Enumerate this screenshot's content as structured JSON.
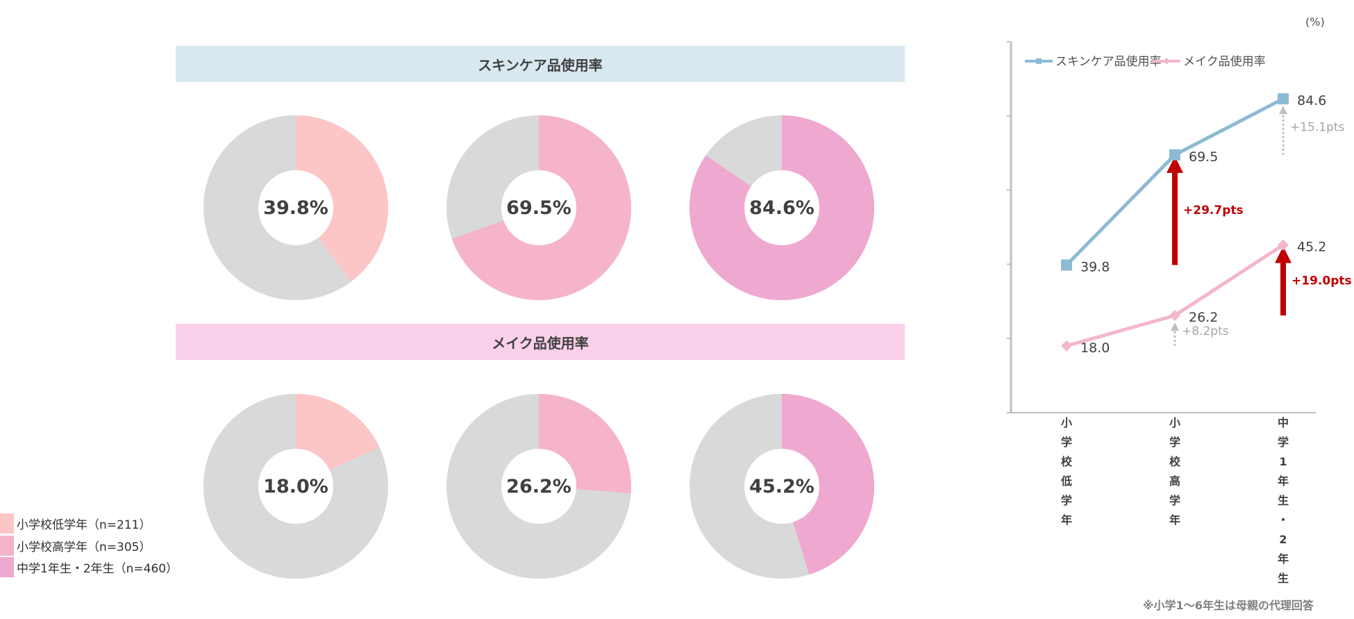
{
  "unit_label": "(%)",
  "footnote": "※小学1〜6年生は母親の代理回答",
  "colors": {
    "skincare_banner": "#d9e8f0",
    "makeup_banner": "#fbd0ea",
    "grey_slice": "#d9d9d9",
    "group1": "#fcc6c6",
    "group2": "#f5b4c9",
    "group3": "#efa8d0",
    "skincare_line": "#8dbad4",
    "makeup_line": "#f3b6cb",
    "arrow_red": "#c00000",
    "arrow_grey": "#bfbfbf"
  },
  "legend": [
    {
      "label": "小学校低学年（n=211）",
      "color": "#fcc6c6"
    },
    {
      "label": "小学校高学年（n=305）",
      "color": "#f5b4c9"
    },
    {
      "label": "中学1年生・2年生（n=460）",
      "color": "#efa8d0"
    }
  ],
  "donuts": {
    "skincare_title": "スキンケア品使用率",
    "makeup_title": "メイク品使用率",
    "skincare": [
      {
        "label": "39.8%",
        "value": 39.8
      },
      {
        "label": "69.5%",
        "value": 69.5
      },
      {
        "label": "84.6%",
        "value": 84.6
      }
    ],
    "makeup": [
      {
        "label": "18.0%",
        "value": 18.0
      },
      {
        "label": "26.2%",
        "value": 26.2
      },
      {
        "label": "45.2%",
        "value": 45.2
      }
    ]
  },
  "chart_data": [
    {
      "type": "pie",
      "title": "スキンケア品使用率",
      "categories": [
        "小学校低学年（n=211）",
        "小学校高学年（n=305）",
        "中学1年生・2年生（n=460）"
      ],
      "values": [
        39.8,
        69.5,
        84.6
      ]
    },
    {
      "type": "pie",
      "title": "メイク品使用率",
      "categories": [
        "小学校低学年（n=211）",
        "小学校高学年（n=305）",
        "中学1年生・2年生（n=460）"
      ],
      "values": [
        18.0,
        26.2,
        45.2
      ]
    },
    {
      "type": "line",
      "categories": [
        "小学校低学年",
        "小学校高学年",
        "中学1年生・2年生"
      ],
      "series": [
        {
          "name": "スキンケア品使用率",
          "values": [
            39.8,
            69.5,
            84.6
          ],
          "labels": [
            "39.8",
            "69.5",
            "84.6"
          ]
        },
        {
          "name": "メイク品使用率",
          "values": [
            18.0,
            26.2,
            45.2
          ],
          "labels": [
            "18.0",
            "26.2",
            "45.2"
          ]
        }
      ],
      "ylim": [
        0,
        100
      ],
      "ytick_step": 20,
      "annotations": [
        {
          "text": "+29.7pts",
          "series": 0,
          "from": 0,
          "to": 1,
          "style": "red"
        },
        {
          "text": "+15.1pts",
          "series": 0,
          "from": 1,
          "to": 2,
          "style": "grey"
        },
        {
          "text": "+8.2pts",
          "series": 1,
          "from": 0,
          "to": 1,
          "style": "grey"
        },
        {
          "text": "+19.0pts",
          "series": 1,
          "from": 1,
          "to": 2,
          "style": "red"
        }
      ]
    }
  ]
}
